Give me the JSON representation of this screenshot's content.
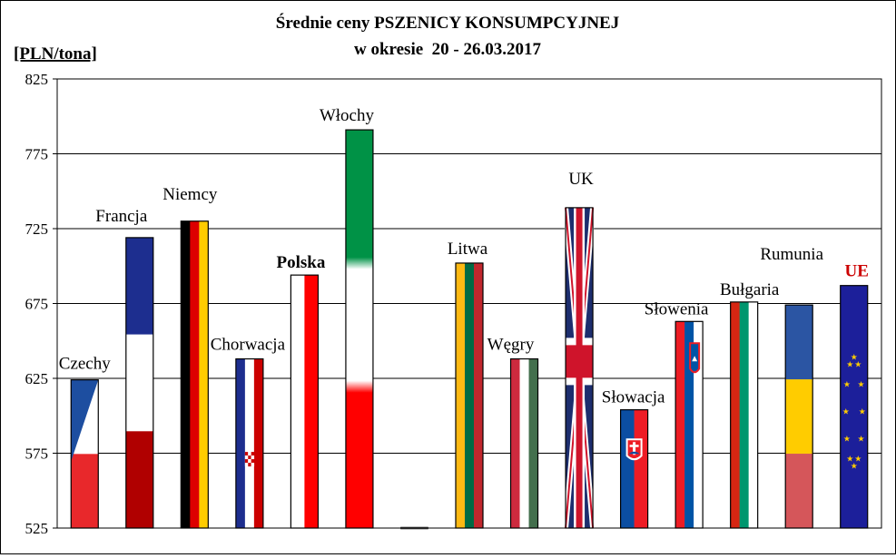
{
  "chart_data": {
    "type": "bar",
    "title": "Średnie ceny PSZENICY KONSUMPCYJNEJ",
    "subtitle": "w okresie  20 - 26.03.2017",
    "ylabel": "[PLN/tona]",
    "xlabel": "",
    "ylim": [
      525,
      825
    ],
    "yticks": [
      525,
      575,
      625,
      675,
      725,
      775,
      825
    ],
    "grid": true,
    "categories": [
      "Czechy",
      "Francja",
      "Niemcy",
      "Chorwacja",
      "Polska",
      "Włochy",
      "",
      "Litwa",
      "Węgry",
      "UK",
      "Słowacja",
      "Słowenia",
      "Bułgaria",
      "Rumunia",
      "UE"
    ],
    "values": [
      624,
      719,
      730,
      638,
      694,
      791,
      525,
      702,
      638,
      739,
      604,
      663,
      676,
      674,
      687
    ],
    "highlight": {
      "Polska": "bold",
      "UE": "#cc0000"
    }
  }
}
